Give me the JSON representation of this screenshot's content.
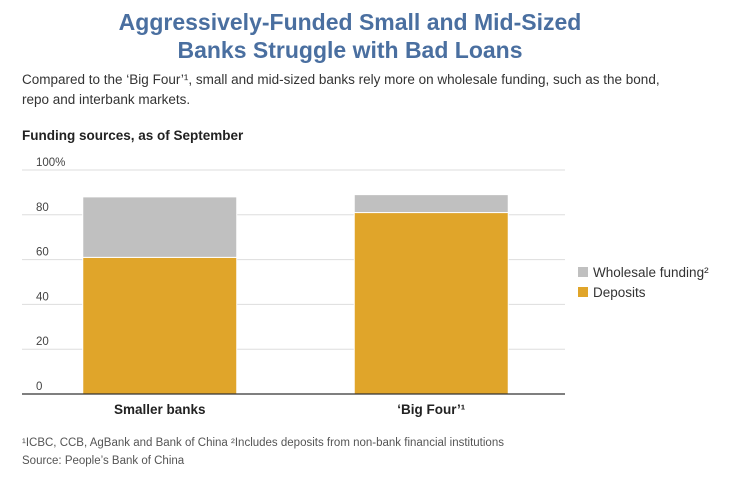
{
  "title_line1": "Aggressively-Funded Small and Mid-Sized",
  "title_line2": "Banks Struggle with Bad Loans",
  "subtitle_line1": "Compared to the ‘Big Four’¹, small and mid-sized banks rely more on wholesale funding, such as the bond,",
  "subtitle_line2": "repo and interbank markets.",
  "section_label": "Funding sources, as of September",
  "footnote_line1": "¹ICBC, CCB, AgBank and Bank of China ²Includes deposits from non-bank financial institutions",
  "footnote_line2": "Source: People’s Bank of China",
  "colors": {
    "deposits": "#e0a52a",
    "wholesale": "#c0c0c0",
    "grid": "#dddddd",
    "axis": "#333333"
  },
  "chart_data": {
    "type": "bar",
    "stacked": true,
    "categories": [
      "Smaller banks",
      "‘Big Four’¹"
    ],
    "series": [
      {
        "name": "Deposits",
        "values": [
          61,
          81
        ]
      },
      {
        "name": "Wholesale funding²",
        "values": [
          27,
          8
        ]
      }
    ],
    "ylim": [
      0,
      100
    ],
    "yticks": [
      "100%",
      "80",
      "60",
      "40",
      "20",
      "0"
    ],
    "ytick_values": [
      100,
      80,
      60,
      40,
      20,
      0
    ],
    "grid": true,
    "legend_placement": "right"
  }
}
